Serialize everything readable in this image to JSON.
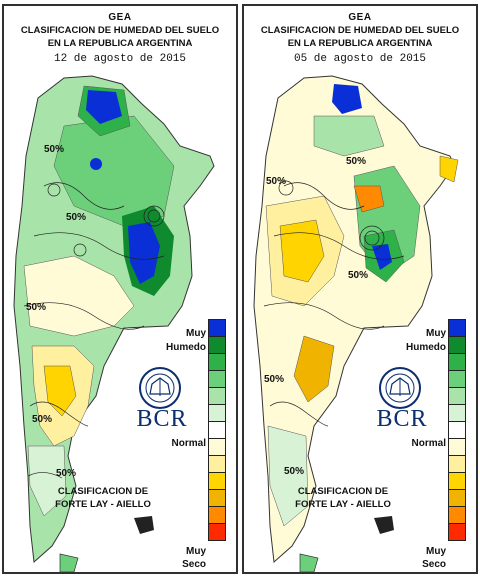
{
  "maps": [
    {
      "org": "GEA",
      "title_line1": "CLASIFICACION DE HUMEDAD DEL SUELO",
      "title_line2": "EN LA REPUBLICA ARGENTINA",
      "date": "12 de agosto de 2015",
      "contour_labels": [
        "50%",
        "50%",
        "50%",
        "50%",
        "50%"
      ]
    },
    {
      "org": "GEA",
      "title_line1": "CLASIFICACION DE HUMEDAD DEL SUELO",
      "title_line2": "EN LA REPUBLICA ARGENTINA",
      "date": "05 de agosto de 2015",
      "contour_labels": [
        "50%",
        "50%",
        "50%",
        "50%",
        "50%"
      ]
    }
  ],
  "legend": {
    "top_label_1": "Muy",
    "top_label_2": "Humedo",
    "mid_label": "Normal",
    "bottom_label_1": "Muy",
    "bottom_label_2": "Seco",
    "colors": [
      "#0a2fd6",
      "#0f8a2e",
      "#2fb14a",
      "#6cd07a",
      "#a8e4a9",
      "#d8f2d6",
      "#ffffff",
      "#fffbd6",
      "#fff0a0",
      "#ffd400",
      "#f0b400",
      "#ff8a00",
      "#ff2b00"
    ]
  },
  "logo": {
    "seal_text": "BOLSA DE COMERCIO DE ROSARIO",
    "brand": "BCR"
  },
  "classification": {
    "line1": "CLASIFICACION DE",
    "line2": "FORTE LAY - AIELLO"
  }
}
